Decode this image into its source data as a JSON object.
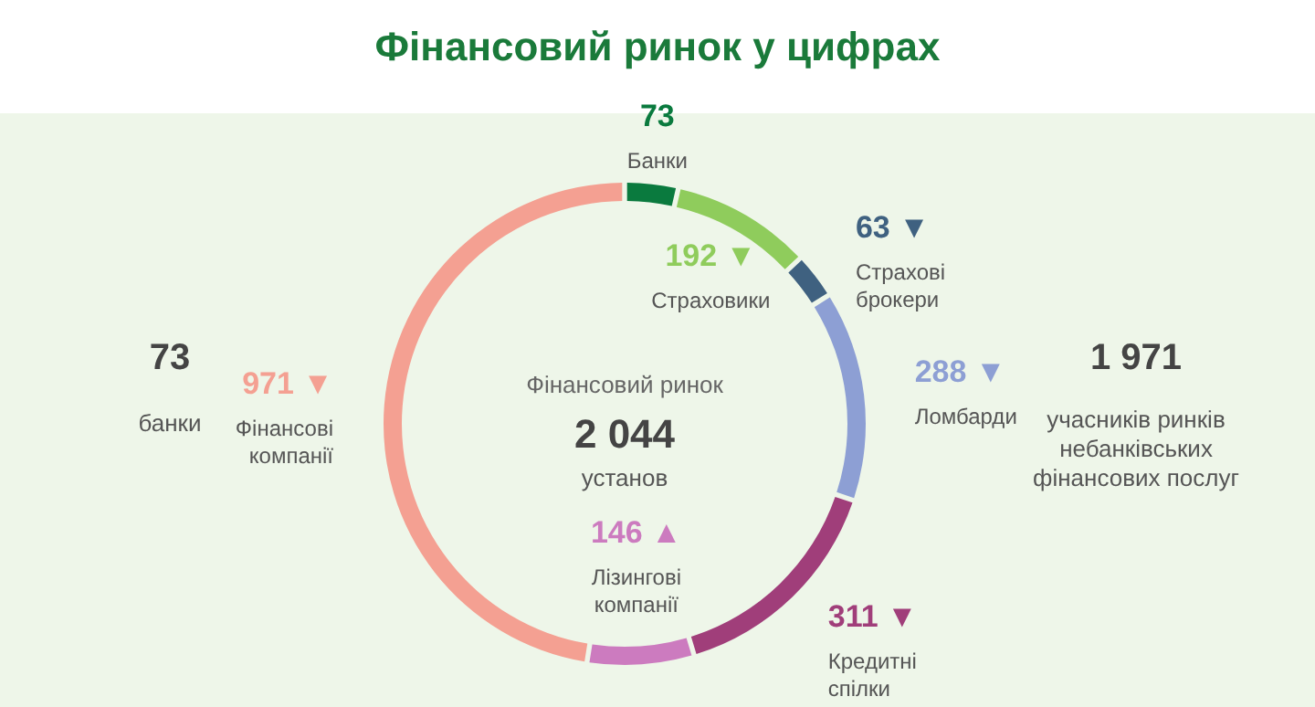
{
  "chart_data": {
    "type": "donut",
    "title": "Фінансовий ринок у цифрах",
    "categories": [
      "Банки",
      "Страховики",
      "Страхові брокери",
      "Ломбарди",
      "Кредитні спілки",
      "Лізингові компанії",
      "Фінансові компанії"
    ],
    "values": [
      73,
      192,
      63,
      288,
      311,
      146,
      971
    ],
    "colors": [
      "#0a7a3e",
      "#8fcc5c",
      "#3f6180",
      "#8d9fd4",
      "#a03e7a",
      "#cc7bbf",
      "#f4a092"
    ],
    "value_labels": [
      "73",
      "192 ▼",
      "63 ▼",
      "288 ▼",
      "311 ▼",
      "146 ▲",
      "971 ▼"
    ],
    "annotations": [
      "Фінансовий ринок",
      "2 044",
      "установ",
      "73",
      "банки",
      "1 971",
      "учасників ринків небанківських фінансових послуг"
    ]
  }
}
